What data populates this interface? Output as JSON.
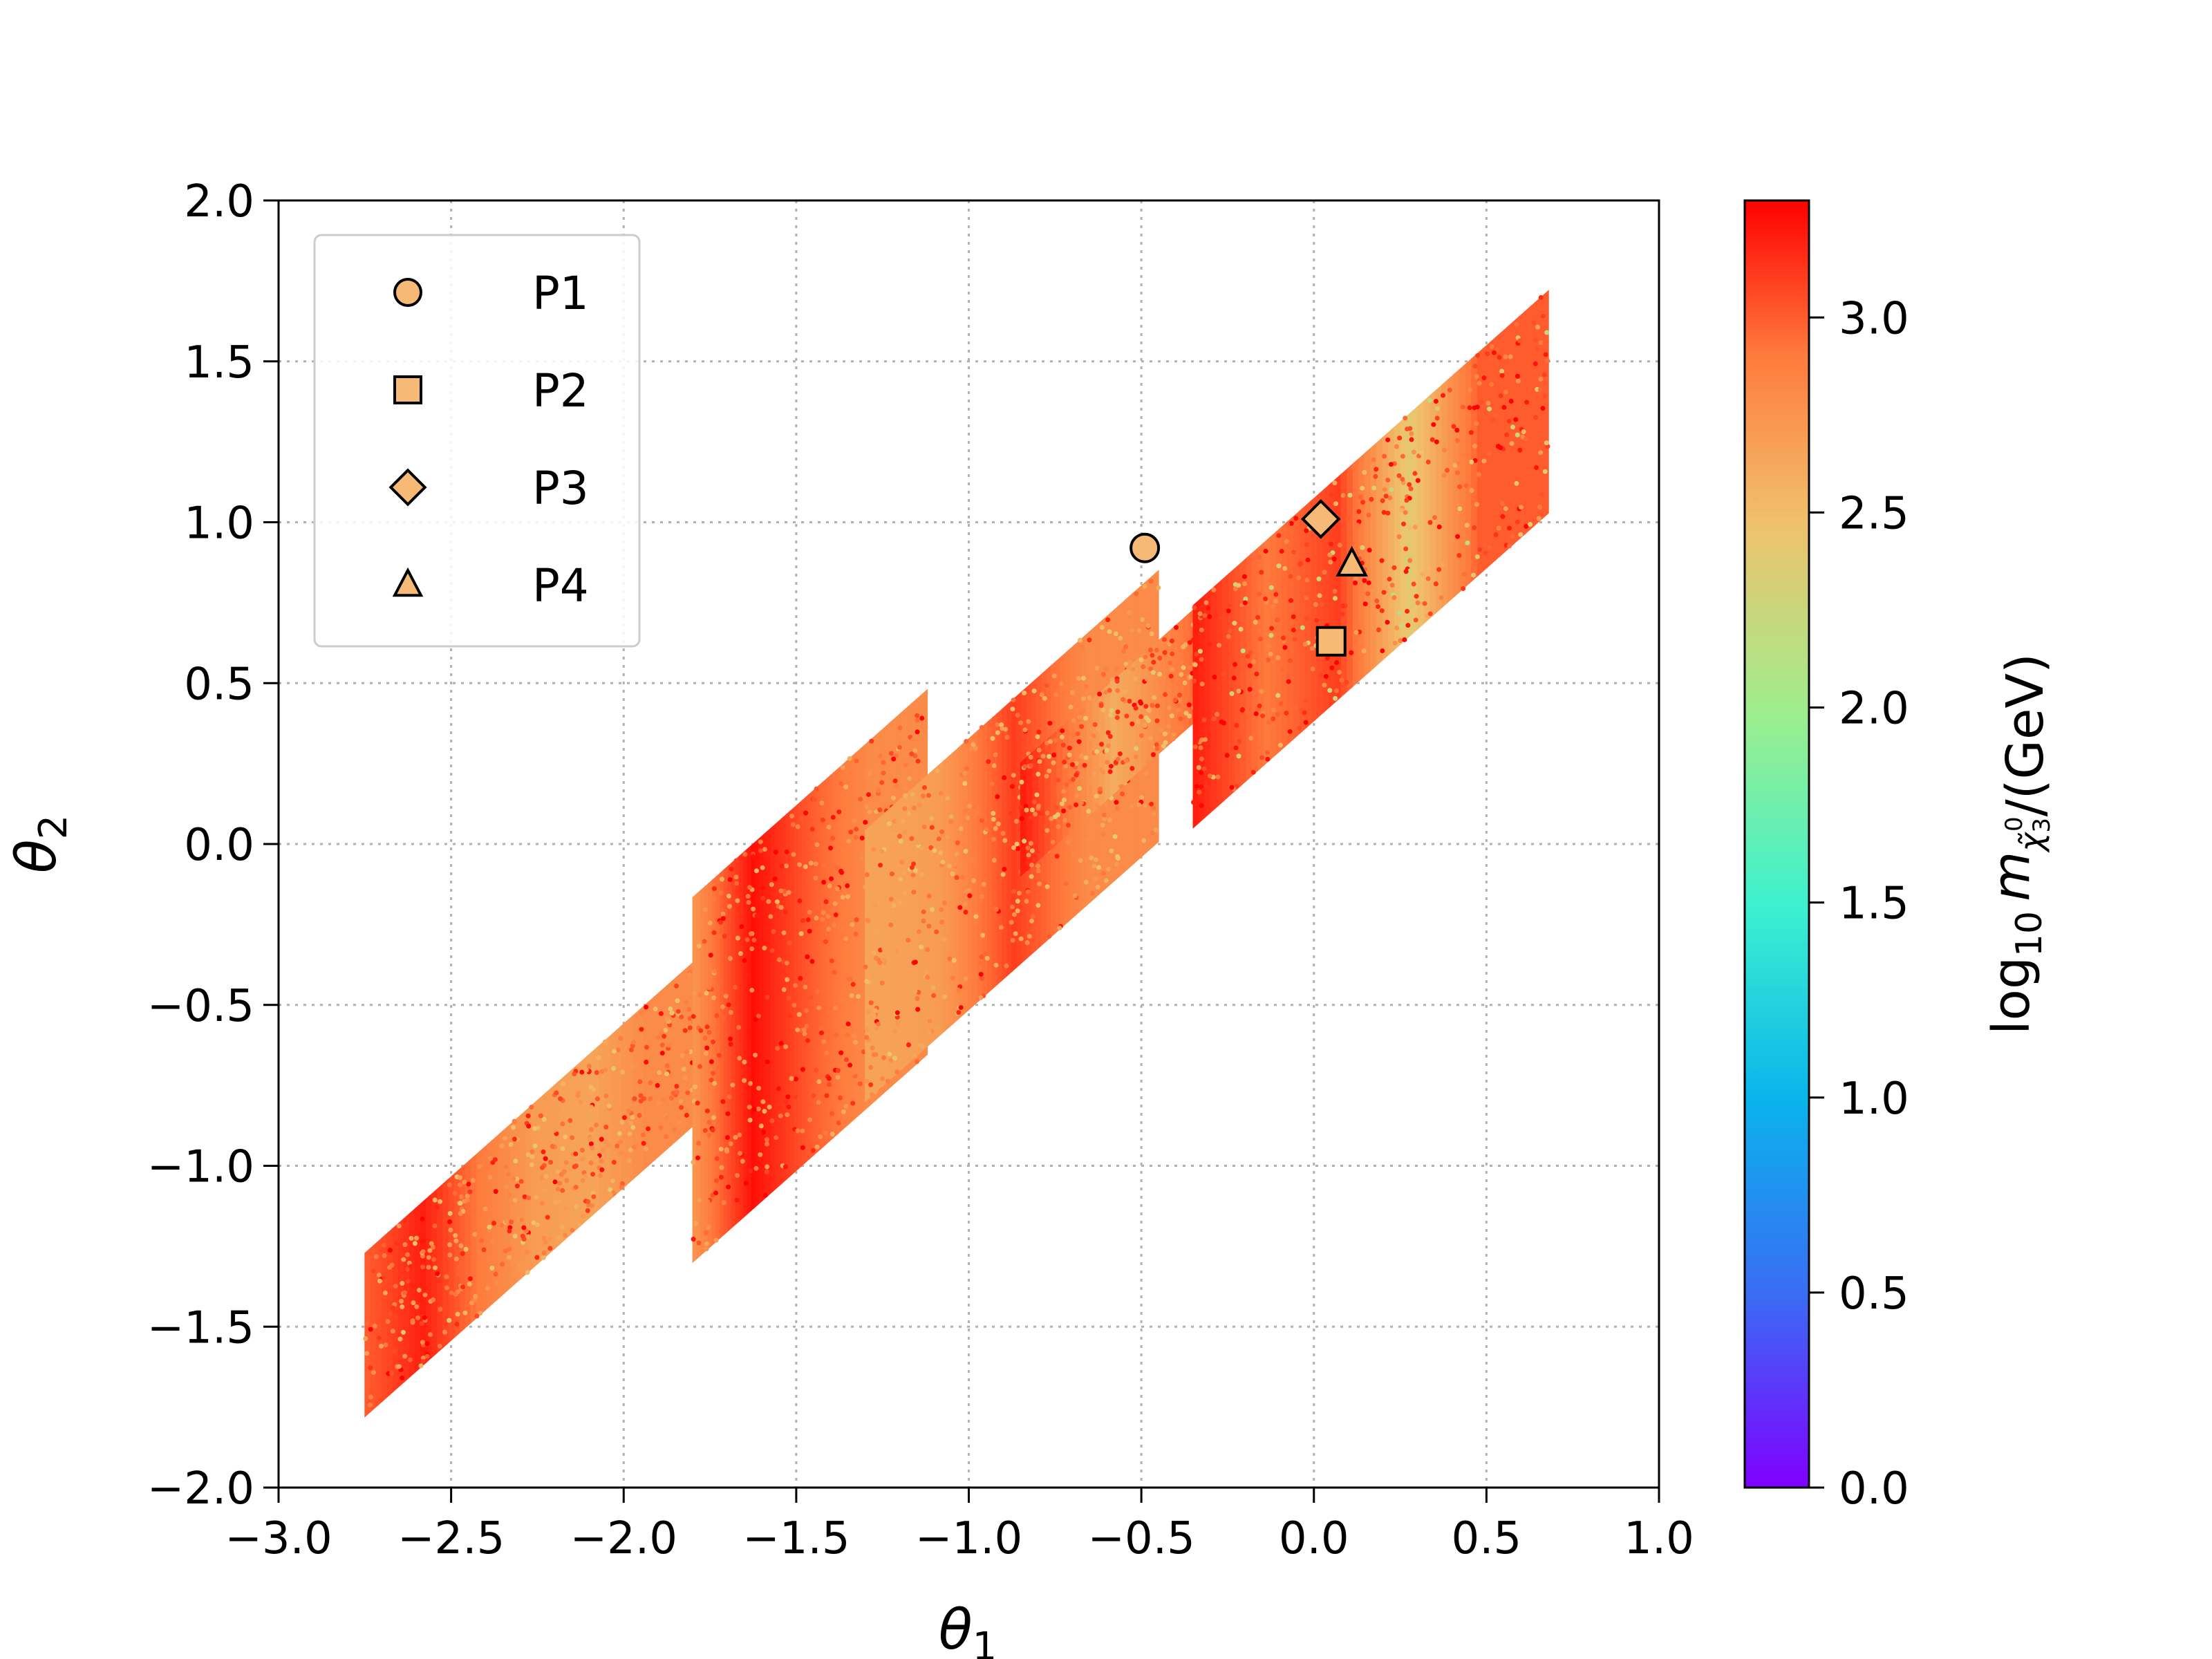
{
  "chart_data": {
    "type": "scatter",
    "title": "",
    "xlabel": "θ",
    "xlabel_sub": "1",
    "ylabel": "θ",
    "ylabel_sub": "2",
    "xlim": [
      -3.0,
      1.0
    ],
    "ylim": [
      -2.0,
      2.0
    ],
    "xticks": [
      "−3.0",
      "−2.5",
      "−2.0",
      "−1.5",
      "−1.0",
      "−0.5",
      "0.0",
      "0.5",
      "1.0"
    ],
    "xtick_values": [
      -3.0,
      -2.5,
      -2.0,
      -1.5,
      -1.0,
      -0.5,
      0.0,
      0.5,
      1.0
    ],
    "yticks": [
      "−2.0",
      "−1.5",
      "−1.0",
      "−0.5",
      "0.0",
      "0.5",
      "1.0",
      "1.5",
      "2.0"
    ],
    "ytick_values": [
      -2.0,
      -1.5,
      -1.0,
      -0.5,
      0.0,
      0.5,
      1.0,
      1.5,
      2.0
    ],
    "grid": true,
    "legend_position": "top-left",
    "colormap": "rainbow",
    "colorbar": {
      "label_prefix": "log",
      "label_sub": "10",
      "label_var": "m",
      "label_var_sub": "χ̃",
      "label_var_sub2": "3",
      "label_var_sup": "0",
      "label_suffix": "/(GeV)",
      "range": [
        0.0,
        3.3
      ],
      "ticks": [
        "0.0",
        "0.5",
        "1.0",
        "1.5",
        "2.0",
        "2.5",
        "3.0"
      ],
      "tick_values": [
        0.0,
        0.5,
        1.0,
        1.5,
        2.0,
        2.5,
        3.0
      ]
    },
    "bands": [
      {
        "theta1_range": [
          -2.75,
          -1.78
        ],
        "theta2_top": -0.35,
        "theta2_bottom": -1.78,
        "slope": 0.95,
        "values": [
          3.0,
          3.2,
          2.9,
          2.7,
          2.65,
          2.8
        ]
      },
      {
        "theta1_range": [
          -1.8,
          -1.12
        ],
        "theta2_top": 0.48,
        "theta2_bottom": -1.3,
        "slope": 0.95,
        "values": [
          2.75,
          3.25,
          3.0,
          2.8
        ]
      },
      {
        "theta1_range": [
          -1.3,
          -0.45
        ],
        "theta2_top": 0.85,
        "theta2_bottom": -0.8,
        "slope": 0.95,
        "values": [
          2.65,
          2.7,
          3.1,
          2.8
        ]
      },
      {
        "theta1_range": [
          -0.85,
          0.2
        ],
        "theta2_top": 1.25,
        "theta2_bottom": -0.1,
        "slope": 0.95,
        "values": [
          3.2,
          2.6,
          3.0,
          2.7
        ]
      },
      {
        "theta1_range": [
          -0.35,
          0.68
        ],
        "theta2_top": 1.72,
        "theta2_bottom": 0.05,
        "slope": 0.95,
        "values": [
          3.2,
          2.9,
          3.1,
          2.4,
          3.0
        ]
      }
    ],
    "series": [
      {
        "name": "P1",
        "marker": "circle",
        "x": -0.49,
        "y": 0.92,
        "color": "#f7ba76"
      },
      {
        "name": "P2",
        "marker": "square",
        "x": 0.05,
        "y": 0.63,
        "color": "#f7ba76"
      },
      {
        "name": "P3",
        "marker": "diamond",
        "x": 0.02,
        "y": 1.01,
        "color": "#f7ba76"
      },
      {
        "name": "P4",
        "marker": "triangle",
        "x": 0.11,
        "y": 0.87,
        "color": "#f7ba76"
      }
    ]
  }
}
